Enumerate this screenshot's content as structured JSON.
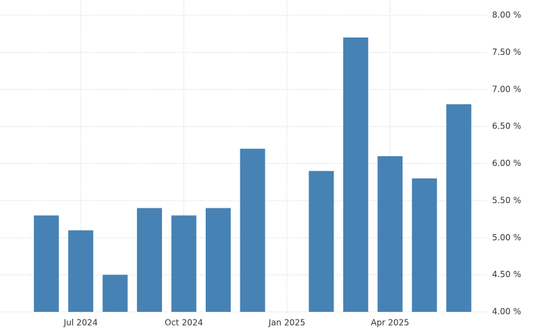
{
  "chart_data": {
    "type": "bar",
    "categories": [
      null,
      "Jul 2024",
      null,
      null,
      "Oct 2024",
      null,
      null,
      "Jan 2025",
      null,
      null,
      "Apr 2025",
      null,
      null
    ],
    "values": [
      5.3,
      5.1,
      4.5,
      5.4,
      5.3,
      5.4,
      6.2,
      null,
      5.9,
      7.7,
      6.1,
      5.8,
      6.8
    ],
    "color": "#4682b4",
    "ylim": [
      4,
      8
    ],
    "yticks": [
      {
        "value": 4,
        "label": "4.00 %"
      },
      {
        "value": 4.5,
        "label": "4.50 %"
      },
      {
        "value": 5,
        "label": "5.00 %"
      },
      {
        "value": 5.5,
        "label": "5.50 %"
      },
      {
        "value": 6,
        "label": "6.00 %"
      },
      {
        "value": 6.5,
        "label": "6.50 %"
      },
      {
        "value": 7,
        "label": "7.00 %"
      },
      {
        "value": 7.5,
        "label": "7.50 %"
      },
      {
        "value": 8,
        "label": "8.00 %"
      }
    ],
    "y_axis_side": "right",
    "grid": true
  }
}
